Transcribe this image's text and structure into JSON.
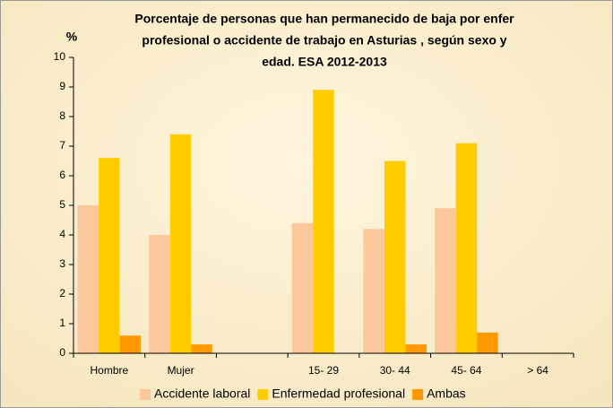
{
  "chart_data": {
    "type": "bar",
    "title": [
      "Porcentaje de personas que han permanecido de baja por enfer",
      "profesional o accidente de trabajo en  Asturias , según sexo y",
      "edad. ESA 2012-2013"
    ],
    "ylabel": "%",
    "categories": [
      "Hombre",
      "Mujer",
      null,
      "15- 29",
      "30- 44",
      "45- 64",
      "> 64"
    ],
    "series": [
      {
        "name": "Accidente laboral",
        "color": "#fcc89b",
        "values": [
          5,
          4,
          null,
          4.4,
          4.2,
          4.9,
          null
        ]
      },
      {
        "name": "Enfermedad profesional",
        "color": "#ffcc00",
        "values": [
          6.6,
          7.4,
          null,
          8.9,
          6.5,
          7.1,
          null
        ]
      },
      {
        "name": "Ambas",
        "color": "#ff9900",
        "values": [
          0.6,
          0.3,
          null,
          null,
          0.3,
          0.7,
          null
        ]
      }
    ],
    "ylim": [
      0,
      10
    ],
    "yticks": [
      0,
      1,
      2,
      3,
      4,
      5,
      6,
      7,
      8,
      9,
      10
    ],
    "legend": "bottom"
  }
}
